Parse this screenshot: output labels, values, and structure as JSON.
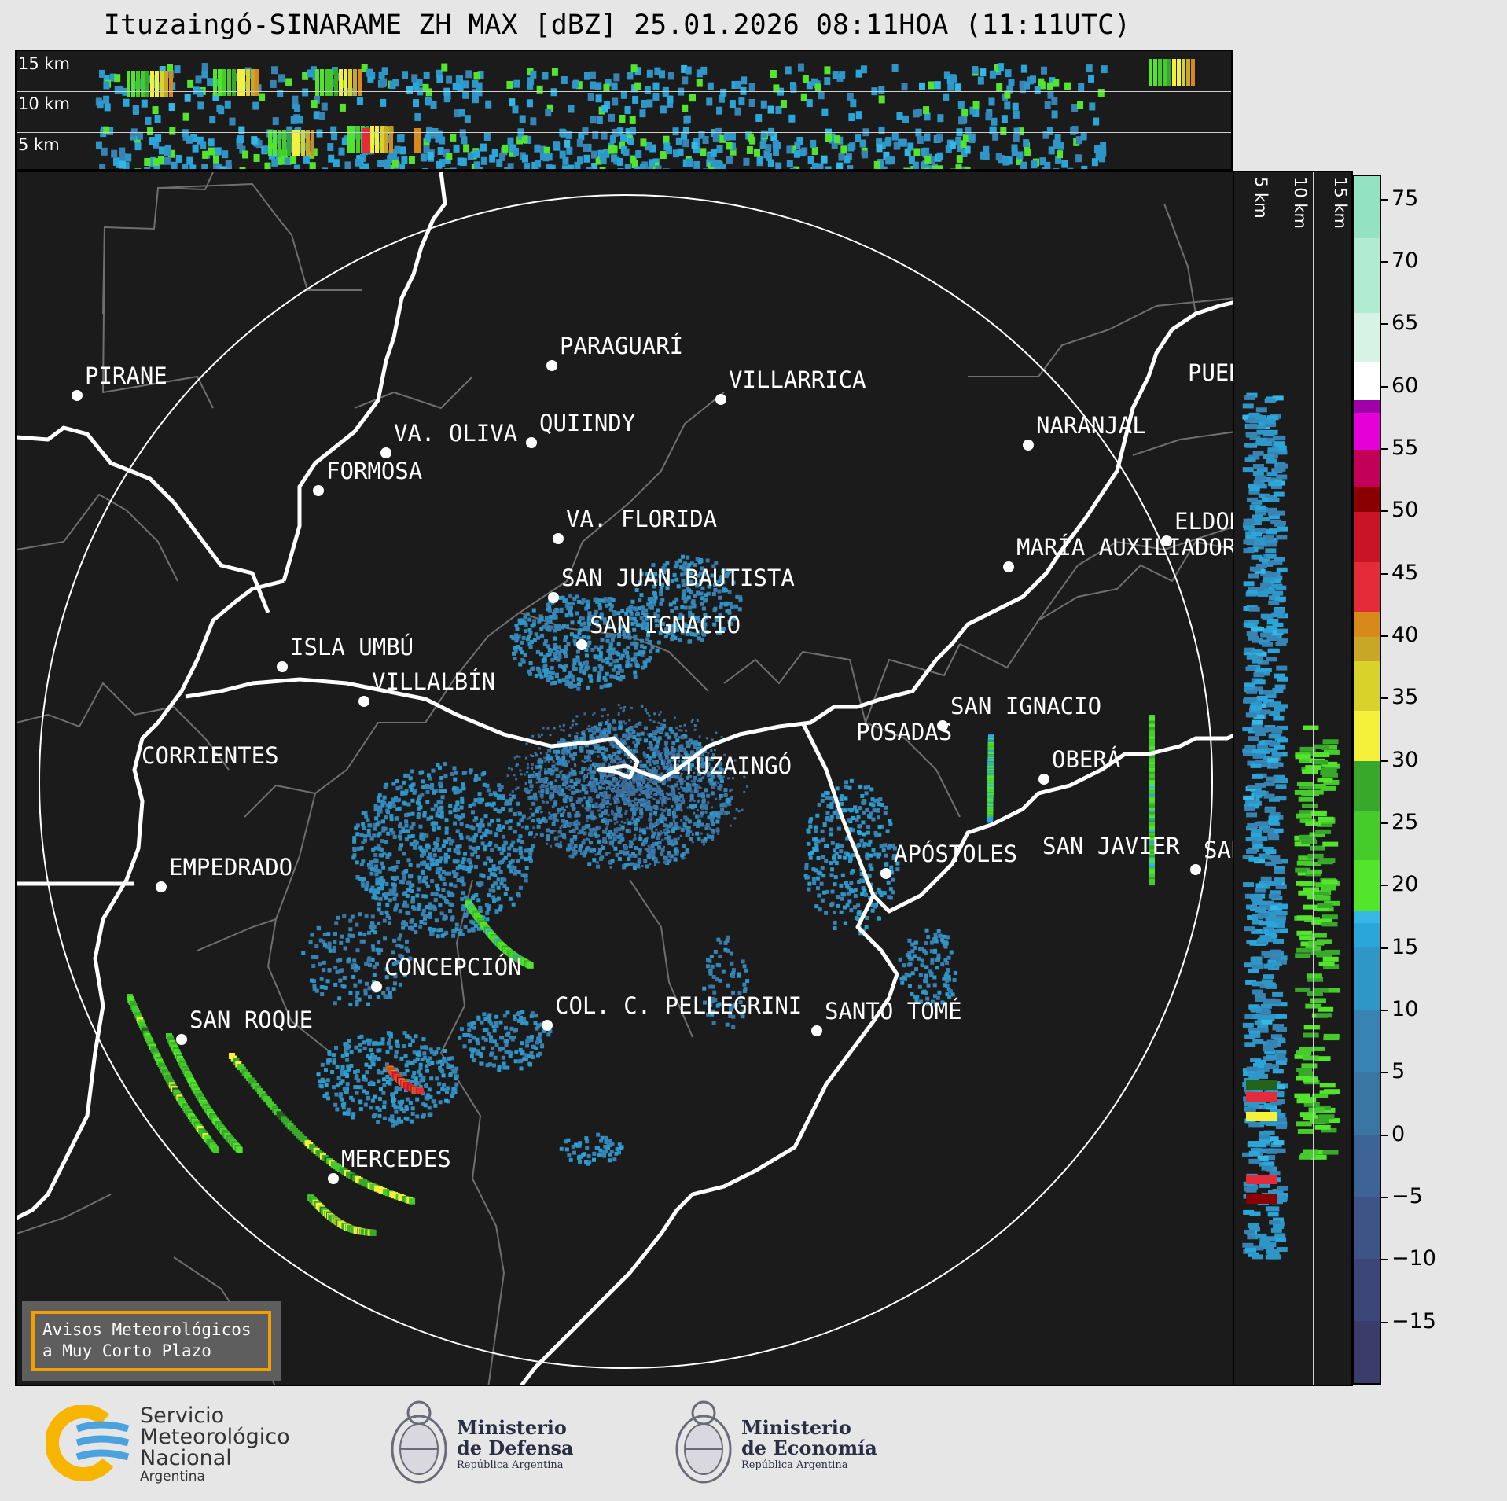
{
  "title": "Ituzaingó-SINARAME ZH MAX [dBZ] 25.01.2026 08:11HOA (11:11UTC)",
  "top_panel": {
    "labels": [
      "15 km",
      "10 km",
      "5 km"
    ]
  },
  "side_panel": {
    "labels": [
      "5 km",
      "10 km",
      "15 km"
    ]
  },
  "cities": [
    {
      "name": "PIRANE"
    },
    {
      "name": "PARAGUARÍ"
    },
    {
      "name": "VILLARRICA"
    },
    {
      "name": "QUIINDY"
    },
    {
      "name": "VA. OLIVA"
    },
    {
      "name": "NARANJAL"
    },
    {
      "name": "FORMOSA"
    },
    {
      "name": "VA. FLORIDA"
    },
    {
      "name": "ELDORADO"
    },
    {
      "name": "MARÍA AUXILIADORA"
    },
    {
      "name": "SAN JUAN BAUTISTA"
    },
    {
      "name": "SAN IGNACIO"
    },
    {
      "name": "ISLA UMBÚ"
    },
    {
      "name": "VILLALBÍN"
    },
    {
      "name": "SAN IGNACIO"
    },
    {
      "name": "POSADAS"
    },
    {
      "name": "CORRIENTES"
    },
    {
      "name": "ITUZAINGÓ"
    },
    {
      "name": "OBERÁ"
    },
    {
      "name": "APÓSTOLES"
    },
    {
      "name": "SAN JAVIER"
    },
    {
      "name": "SAN"
    },
    {
      "name": "EMPEDRADO"
    },
    {
      "name": "CONCEPCIÓN"
    },
    {
      "name": "COL. C. PELLEGRINI"
    },
    {
      "name": "SANTO TOMÉ"
    },
    {
      "name": "SAN ROQUE"
    },
    {
      "name": "MERCEDES"
    },
    {
      "name": "PUERTO"
    }
  ],
  "colorbar": {
    "unit": "dBZ",
    "min": -20,
    "max": 77,
    "ticks": [
      "75",
      "70",
      "65",
      "60",
      "55",
      "50",
      "45",
      "40",
      "35",
      "30",
      "25",
      "20",
      "15",
      "10",
      "5",
      "0",
      "−5",
      "−10",
      "−15"
    ],
    "tick_values": [
      75,
      70,
      65,
      60,
      55,
      50,
      45,
      40,
      35,
      30,
      25,
      20,
      15,
      10,
      5,
      0,
      -5,
      -10,
      -15
    ]
  },
  "notice": {
    "line1": "Avisos Meteorológicos",
    "line2": "a Muy Corto Plazo"
  },
  "logos": {
    "smn": {
      "line1": "Servicio",
      "line2": "Meteorológico",
      "line3": "Nacional",
      "line4": "Argentina"
    },
    "defensa": {
      "line1": "Ministerio",
      "line2": "de Defensa",
      "line3": "República Argentina"
    },
    "economia": {
      "line1": "Ministerio",
      "line2": "de Economía",
      "line3": "República Argentina"
    }
  }
}
